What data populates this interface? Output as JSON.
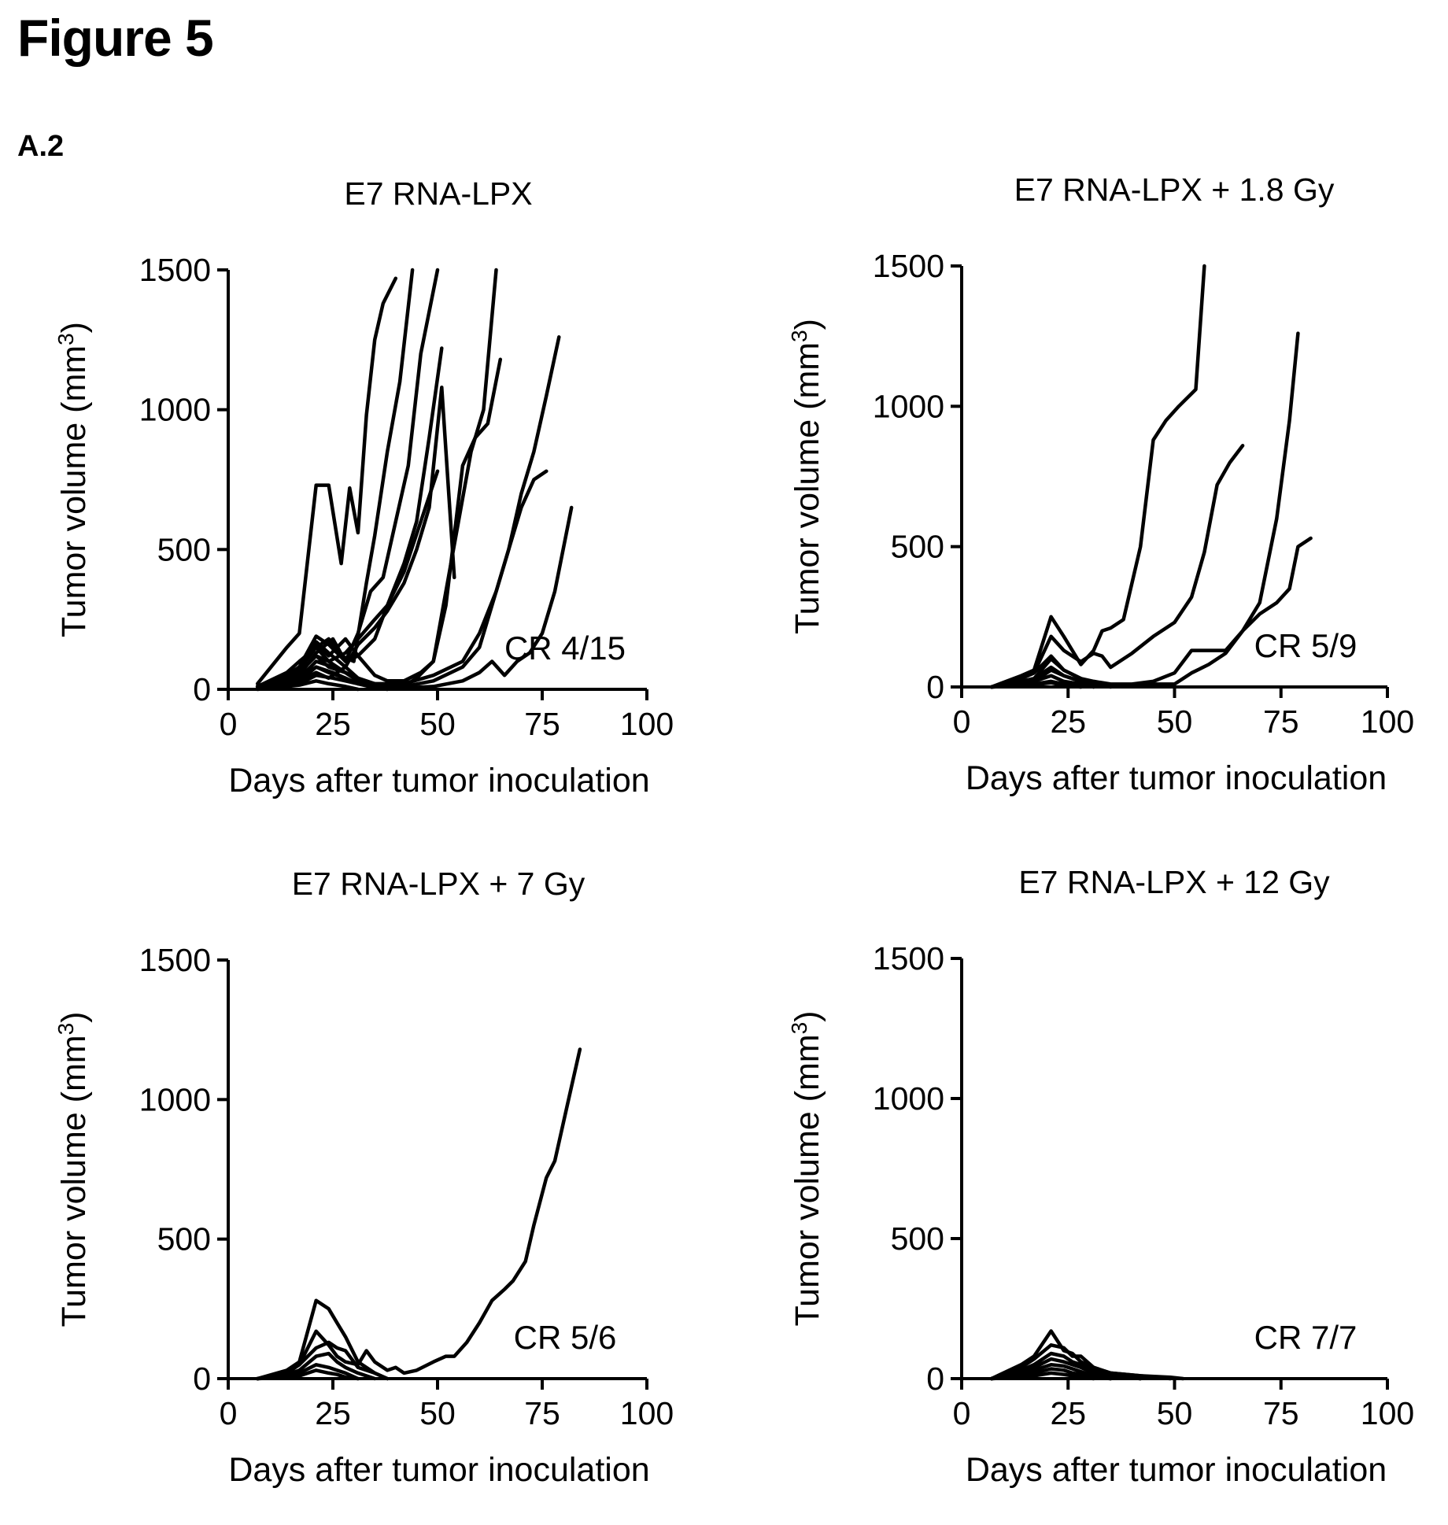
{
  "figure": {
    "title": "Figure 5",
    "panel_label": "A.2"
  },
  "chart_data": [
    {
      "type": "line",
      "title": "E7 RNA-LPX",
      "xlabel": "Days after tumor inoculation",
      "ylabel": "Tumor volume (mm3)",
      "xlim": [
        0,
        100
      ],
      "ylim": [
        0,
        1500
      ],
      "xticks": [
        0,
        25,
        50,
        75,
        100
      ],
      "yticks": [
        0,
        500,
        1000,
        1500
      ],
      "annotation": "CR 4/15",
      "series": [
        {
          "x": [
            7,
            14,
            17,
            21,
            24,
            27,
            29,
            31,
            33,
            35,
            37,
            40
          ],
          "y": [
            20,
            150,
            200,
            730,
            730,
            450,
            720,
            560,
            980,
            1250,
            1380,
            1470
          ]
        },
        {
          "x": [
            7,
            14,
            17,
            21,
            24,
            27,
            30,
            33,
            35,
            38,
            41,
            44
          ],
          "y": [
            10,
            60,
            100,
            150,
            180,
            120,
            100,
            380,
            550,
            850,
            1100,
            1500
          ]
        },
        {
          "x": [
            7,
            14,
            17,
            21,
            24,
            28,
            31,
            34,
            37,
            40,
            43,
            46,
            50
          ],
          "y": [
            10,
            50,
            80,
            190,
            160,
            100,
            200,
            350,
            400,
            600,
            800,
            1200,
            1500
          ]
        },
        {
          "x": [
            7,
            14,
            17,
            21,
            24,
            28,
            31,
            35,
            38,
            42,
            45,
            48,
            51
          ],
          "y": [
            10,
            40,
            70,
            150,
            100,
            130,
            180,
            250,
            300,
            450,
            600,
            900,
            1220
          ]
        },
        {
          "x": [
            7,
            14,
            17,
            21,
            24,
            28,
            31,
            35,
            38,
            42,
            45,
            48,
            51,
            54
          ],
          "y": [
            10,
            50,
            80,
            170,
            130,
            80,
            160,
            220,
            280,
            380,
            500,
            650,
            1080,
            400
          ]
        },
        {
          "x": [
            7,
            14,
            17,
            21,
            24,
            28,
            31,
            35,
            38,
            42,
            45,
            49,
            52,
            56,
            59,
            62,
            65
          ],
          "y": [
            5,
            30,
            60,
            120,
            80,
            60,
            40,
            20,
            10,
            10,
            40,
            100,
            300,
            800,
            900,
            950,
            1180
          ]
        },
        {
          "x": [
            7,
            14,
            17,
            21,
            24,
            28,
            31,
            35,
            38,
            42,
            46,
            49,
            52,
            55,
            58,
            61,
            64
          ],
          "y": [
            10,
            40,
            80,
            160,
            120,
            180,
            120,
            50,
            30,
            30,
            60,
            100,
            350,
            600,
            850,
            1000,
            1500
          ]
        },
        {
          "x": [
            7,
            14,
            17,
            21,
            25,
            28,
            31,
            35,
            38,
            42,
            46,
            50
          ],
          "y": [
            10,
            30,
            50,
            130,
            180,
            100,
            120,
            180,
            300,
            420,
            600,
            780
          ]
        },
        {
          "x": [
            7,
            14,
            17,
            21,
            25,
            28,
            31,
            35,
            42,
            49,
            56,
            60,
            64,
            67,
            70,
            73,
            76
          ],
          "y": [
            10,
            20,
            40,
            100,
            80,
            60,
            30,
            20,
            20,
            50,
            100,
            200,
            350,
            500,
            650,
            750,
            780
          ]
        },
        {
          "x": [
            7,
            14,
            17,
            21,
            25,
            28,
            31,
            35,
            42,
            49,
            56,
            60,
            64,
            67,
            70,
            73,
            76,
            79
          ],
          "y": [
            5,
            15,
            30,
            80,
            60,
            40,
            20,
            10,
            10,
            30,
            80,
            150,
            350,
            500,
            700,
            850,
            1050,
            1260
          ]
        },
        {
          "x": [
            7,
            14,
            17,
            21,
            25,
            28,
            31,
            35,
            42,
            49,
            56,
            60,
            63,
            66,
            69,
            72,
            75,
            78,
            82
          ],
          "y": [
            5,
            10,
            20,
            50,
            40,
            30,
            20,
            10,
            5,
            10,
            30,
            60,
            100,
            50,
            100,
            130,
            200,
            350,
            650
          ]
        },
        {
          "x": [
            7,
            14,
            17,
            21,
            24,
            28,
            31,
            35
          ],
          "y": [
            10,
            30,
            60,
            120,
            100,
            60,
            30,
            10
          ]
        },
        {
          "x": [
            7,
            14,
            17,
            21,
            24,
            28,
            31,
            35
          ],
          "y": [
            5,
            20,
            40,
            80,
            60,
            40,
            20,
            5
          ]
        },
        {
          "x": [
            7,
            14,
            17,
            21,
            24,
            28,
            31,
            35,
            38
          ],
          "y": [
            5,
            15,
            30,
            60,
            40,
            80,
            40,
            10,
            0
          ]
        },
        {
          "x": [
            7,
            14,
            17,
            21,
            24,
            28,
            31
          ],
          "y": [
            0,
            10,
            15,
            30,
            20,
            10,
            0
          ]
        }
      ]
    },
    {
      "type": "line",
      "title": "E7 RNA-LPX + 1.8 Gy",
      "xlabel": "Days after tumor inoculation",
      "ylabel": "Tumor volume (mm3)",
      "xlim": [
        0,
        100
      ],
      "ylim": [
        0,
        1500
      ],
      "xticks": [
        0,
        25,
        50,
        75,
        100
      ],
      "yticks": [
        0,
        500,
        1000,
        1500
      ],
      "annotation": "CR 5/9",
      "series": [
        {
          "x": [
            7,
            14,
            17,
            21,
            24,
            28,
            31,
            33,
            35,
            38,
            42,
            45,
            48,
            51,
            55,
            57
          ],
          "y": [
            0,
            40,
            60,
            250,
            180,
            80,
            130,
            200,
            210,
            240,
            500,
            880,
            950,
            1000,
            1060,
            1500
          ]
        },
        {
          "x": [
            7,
            14,
            17,
            21,
            24,
            28,
            31,
            33,
            35,
            40,
            45,
            50,
            54,
            57,
            60,
            63,
            66
          ],
          "y": [
            0,
            30,
            50,
            180,
            130,
            90,
            120,
            110,
            70,
            120,
            180,
            230,
            320,
            480,
            720,
            800,
            860
          ]
        },
        {
          "x": [
            7,
            14,
            17,
            21,
            24,
            28,
            31,
            35,
            40,
            45,
            50,
            54,
            58,
            62,
            66,
            70,
            74,
            77,
            79
          ],
          "y": [
            0,
            20,
            30,
            100,
            60,
            30,
            20,
            10,
            10,
            20,
            50,
            130,
            130,
            130,
            200,
            300,
            600,
            950,
            1260
          ]
        },
        {
          "x": [
            7,
            14,
            17,
            21,
            24,
            28,
            31,
            35,
            40,
            45,
            50,
            54,
            58,
            62,
            66,
            70,
            74,
            77,
            79,
            82
          ],
          "y": [
            0,
            10,
            20,
            60,
            40,
            20,
            10,
            5,
            5,
            10,
            10,
            50,
            80,
            120,
            200,
            260,
            300,
            350,
            500,
            530
          ]
        },
        {
          "x": [
            7,
            14,
            17,
            21,
            24,
            28,
            31,
            35
          ],
          "y": [
            0,
            30,
            50,
            110,
            60,
            30,
            10,
            0
          ]
        },
        {
          "x": [
            7,
            14,
            17,
            21,
            24,
            28,
            31
          ],
          "y": [
            0,
            20,
            30,
            70,
            40,
            20,
            0
          ]
        },
        {
          "x": [
            7,
            14,
            17,
            21,
            24,
            28,
            31
          ],
          "y": [
            0,
            10,
            20,
            40,
            20,
            10,
            0
          ]
        },
        {
          "x": [
            7,
            14,
            17,
            21,
            24,
            28
          ],
          "y": [
            0,
            5,
            10,
            20,
            10,
            0
          ]
        },
        {
          "x": [
            7,
            14,
            17,
            21,
            24,
            28
          ],
          "y": [
            0,
            5,
            8,
            15,
            5,
            0
          ]
        }
      ]
    },
    {
      "type": "line",
      "title": "E7 RNA-LPX + 7 Gy",
      "xlabel": "Days after tumor inoculation",
      "ylabel": "Tumor volume (mm3)",
      "xlim": [
        0,
        100
      ],
      "ylim": [
        0,
        1500
      ],
      "xticks": [
        0,
        25,
        50,
        75,
        100
      ],
      "yticks": [
        0,
        500,
        1000,
        1500
      ],
      "annotation": "CR 5/6",
      "series": [
        {
          "x": [
            7,
            14,
            17,
            21,
            24,
            26,
            28,
            31,
            33,
            35,
            38,
            40,
            42,
            45,
            49,
            52,
            54,
            57,
            60,
            63,
            66,
            68,
            71,
            73,
            76,
            78,
            81,
            84
          ],
          "y": [
            0,
            20,
            50,
            170,
            120,
            80,
            60,
            50,
            100,
            60,
            30,
            40,
            20,
            30,
            60,
            80,
            80,
            130,
            200,
            280,
            320,
            350,
            420,
            550,
            720,
            780,
            980,
            1180
          ]
        },
        {
          "x": [
            7,
            14,
            17,
            21,
            24,
            26,
            28,
            31,
            35,
            38
          ],
          "y": [
            0,
            30,
            60,
            280,
            250,
            200,
            150,
            60,
            20,
            0
          ]
        },
        {
          "x": [
            7,
            14,
            17,
            21,
            24,
            26,
            28,
            31,
            35,
            38
          ],
          "y": [
            0,
            20,
            50,
            110,
            130,
            110,
            100,
            40,
            20,
            0
          ]
        },
        {
          "x": [
            7,
            14,
            17,
            21,
            24,
            26,
            28,
            31,
            35
          ],
          "y": [
            0,
            15,
            30,
            80,
            90,
            60,
            40,
            20,
            0
          ]
        },
        {
          "x": [
            7,
            14,
            17,
            21,
            24,
            26,
            28,
            31
          ],
          "y": [
            0,
            10,
            20,
            50,
            40,
            30,
            20,
            0
          ]
        },
        {
          "x": [
            7,
            14,
            17,
            21,
            24,
            26,
            28,
            31
          ],
          "y": [
            0,
            5,
            10,
            30,
            20,
            15,
            5,
            0
          ]
        }
      ]
    },
    {
      "type": "line",
      "title": "E7 RNA-LPX + 12 Gy",
      "xlabel": "Days after tumor inoculation",
      "ylabel": "Tumor volume (mm3)",
      "xlim": [
        0,
        100
      ],
      "ylim": [
        0,
        1500
      ],
      "xticks": [
        0,
        25,
        50,
        75,
        100
      ],
      "yticks": [
        0,
        500,
        1000,
        1500
      ],
      "annotation": "CR 7/7",
      "series": [
        {
          "x": [
            7,
            14,
            17,
            21,
            24,
            26,
            28,
            31,
            35,
            42,
            49,
            52
          ],
          "y": [
            0,
            50,
            80,
            170,
            100,
            90,
            60,
            40,
            20,
            10,
            5,
            0
          ]
        },
        {
          "x": [
            7,
            14,
            17,
            21,
            24,
            26,
            28,
            31,
            35,
            42,
            49
          ],
          "y": [
            0,
            40,
            70,
            120,
            110,
            80,
            80,
            40,
            20,
            10,
            0
          ]
        },
        {
          "x": [
            7,
            14,
            17,
            21,
            24,
            26,
            28,
            31,
            35,
            42
          ],
          "y": [
            0,
            30,
            50,
            90,
            80,
            60,
            50,
            30,
            10,
            0
          ]
        },
        {
          "x": [
            7,
            14,
            17,
            21,
            24,
            26,
            28,
            31,
            35,
            42
          ],
          "y": [
            0,
            20,
            40,
            70,
            60,
            50,
            40,
            20,
            10,
            0
          ]
        },
        {
          "x": [
            7,
            14,
            17,
            21,
            24,
            26,
            28,
            31,
            35
          ],
          "y": [
            0,
            15,
            30,
            50,
            45,
            35,
            25,
            10,
            0
          ]
        },
        {
          "x": [
            7,
            14,
            17,
            21,
            24,
            26,
            28,
            31,
            35
          ],
          "y": [
            0,
            10,
            20,
            35,
            30,
            20,
            15,
            5,
            0
          ]
        },
        {
          "x": [
            7,
            14,
            17,
            21,
            24,
            26,
            28,
            31
          ],
          "y": [
            0,
            5,
            10,
            20,
            15,
            10,
            5,
            0
          ]
        }
      ]
    }
  ]
}
